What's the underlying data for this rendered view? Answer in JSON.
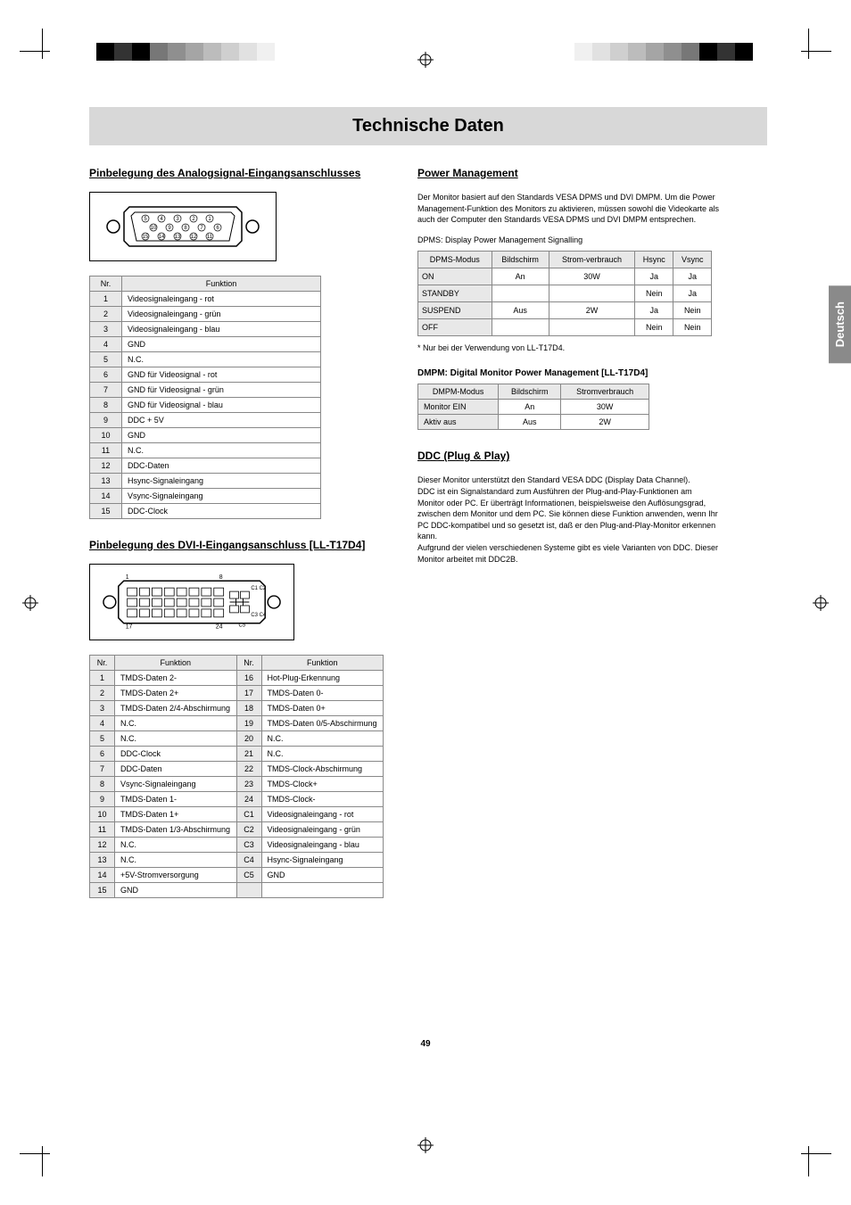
{
  "title": "Technische Daten",
  "lang_tab": "Deutsch",
  "page_num": "49",
  "analog": {
    "heading": "Pinbelegung des Analogsignal-Eingangsanschlusses",
    "headers": [
      "Nr.",
      "Funktion"
    ],
    "rows": [
      [
        "1",
        "Videosignaleingang - rot"
      ],
      [
        "2",
        "Videosignaleingang - grün"
      ],
      [
        "3",
        "Videosignaleingang - blau"
      ],
      [
        "4",
        "GND"
      ],
      [
        "5",
        "N.C."
      ],
      [
        "6",
        "GND für Videosignal - rot"
      ],
      [
        "7",
        "GND für Videosignal - grün"
      ],
      [
        "8",
        "GND für Videosignal - blau"
      ],
      [
        "9",
        "DDC + 5V"
      ],
      [
        "10",
        "GND"
      ],
      [
        "11",
        "N.C."
      ],
      [
        "12",
        "DDC-Daten"
      ],
      [
        "13",
        "Hsync-Signaleingang"
      ],
      [
        "14",
        "Vsync-Signaleingang"
      ],
      [
        "15",
        "DDC-Clock"
      ]
    ]
  },
  "dvi": {
    "heading": "Pinbelegung des DVI-I-Eingangsanschluss [LL-T17D4]",
    "headers": [
      "Nr.",
      "Funktion",
      "Nr.",
      "Funktion"
    ],
    "rows": [
      [
        "1",
        "TMDS-Daten 2-",
        "16",
        "Hot-Plug-Erkennung"
      ],
      [
        "2",
        "TMDS-Daten 2+",
        "17",
        "TMDS-Daten 0-"
      ],
      [
        "3",
        "TMDS-Daten 2/4-Abschirmung",
        "18",
        "TMDS-Daten 0+"
      ],
      [
        "4",
        "N.C.",
        "19",
        "TMDS-Daten 0/5-Abschirmung"
      ],
      [
        "5",
        "N.C.",
        "20",
        "N.C."
      ],
      [
        "6",
        "DDC-Clock",
        "21",
        "N.C."
      ],
      [
        "7",
        "DDC-Daten",
        "22",
        "TMDS-Clock-Abschirmung"
      ],
      [
        "8",
        "Vsync-Signaleingang",
        "23",
        "TMDS-Clock+"
      ],
      [
        "9",
        "TMDS-Daten 1-",
        "24",
        "TMDS-Clock-"
      ],
      [
        "10",
        "TMDS-Daten 1+",
        "C1",
        "Videosignaleingang - rot"
      ],
      [
        "11",
        "TMDS-Daten 1/3-Abschirmung",
        "C2",
        "Videosignaleingang - grün"
      ],
      [
        "12",
        "N.C.",
        "C3",
        "Videosignaleingang - blau"
      ],
      [
        "13",
        "N.C.",
        "C4",
        "Hsync-Signaleingang"
      ],
      [
        "14",
        "+5V-Stromversorgung",
        "C5",
        "GND"
      ],
      [
        "15",
        "GND",
        "",
        ""
      ]
    ]
  },
  "power_mgmt": {
    "heading": "Power Management",
    "intro": "Der Monitor basiert auf den Standards VESA DPMS und DVI DMPM. Um die Power Management-Funktion des Monitors zu aktivieren, müssen sowohl die Videokarte als auch der Computer den Standards VESA DPMS und DVI DMPM entsprechen.",
    "table_label": "DPMS: Display Power Management Signalling",
    "headers": [
      "DPMS-Modus",
      "Bildschirm",
      "Strom-verbrauch",
      "Hsync",
      "Vsync"
    ],
    "rows": [
      [
        "ON",
        "An",
        "30W",
        "Ja",
        "Ja"
      ],
      [
        "STANDBY",
        "",
        "",
        "Nein",
        "Ja"
      ],
      [
        "SUSPEND",
        "Aus",
        "2W",
        "Ja",
        "Nein"
      ],
      [
        "OFF",
        "",
        "",
        "Nein",
        "Nein"
      ]
    ],
    "note": "Nur bei der Verwendung von LL-T17D4."
  },
  "dmpm": {
    "heading": "DMPM: Digital Monitor Power Management [LL-T17D4]",
    "headers": [
      "DMPM-Modus",
      "Bildschirm",
      "Stromverbrauch"
    ],
    "rows": [
      [
        "Monitor EIN",
        "An",
        "30W"
      ],
      [
        "Aktiv aus",
        "Aus",
        "2W"
      ]
    ]
  },
  "ddc": {
    "heading": "DDC (Plug & Play)",
    "body": "Dieser Monitor unterstützt den Standard VESA DDC (Display Data Channel).\nDDC ist ein Signalstandard zum Ausführen der Plug-and-Play-Funktionen am Monitor oder PC. Er überträgt Informationen, beispielsweise den Auflösungsgrad, zwischen dem Monitor und dem PC. Sie können diese Funktion anwenden, wenn Ihr PC DDC-kompatibel und so gesetzt ist, daß er den Plug-and-Play-Monitor erkennen kann.\nAufgrund der vielen verschiedenen Systeme gibt es viele Varianten von DDC. Dieser Monitor arbeitet mit DDC2B."
  },
  "mark_colors": [
    "#000000",
    "#333333",
    "#000000",
    "#777777",
    "#8f8f8f",
    "#a5a5a5",
    "#bcbcbc",
    "#cfcfcf",
    "#e1e1e1",
    "#f0f0f0"
  ]
}
